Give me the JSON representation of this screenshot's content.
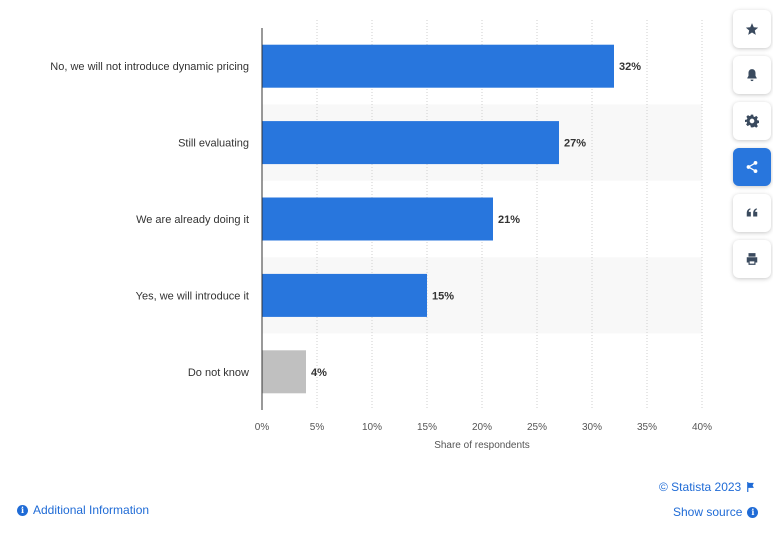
{
  "chart_data": {
    "type": "bar",
    "orientation": "horizontal",
    "categories": [
      "No, we will not introduce dynamic pricing",
      "Still evaluating",
      "We are already doing it",
      "Yes, we will introduce it",
      "Do not know"
    ],
    "values": [
      32,
      27,
      21,
      15,
      4
    ],
    "value_labels": [
      "32%",
      "27%",
      "21%",
      "15%",
      "4%"
    ],
    "bar_colors": [
      "#2876dd",
      "#2876dd",
      "#2876dd",
      "#2876dd",
      "#c0c0c0"
    ],
    "xlabel": "Share of respondents",
    "xlim": [
      0,
      40
    ],
    "xticks": [
      0,
      5,
      10,
      15,
      20,
      25,
      30,
      35,
      40
    ],
    "xtick_labels": [
      "0%",
      "5%",
      "10%",
      "15%",
      "20%",
      "25%",
      "30%",
      "35%",
      "40%"
    ],
    "grid": "vertical dotted",
    "band_colors": [
      "#ffffff",
      "#f8f8f8"
    ]
  },
  "toolbar": {
    "buttons": [
      {
        "name": "favorite-button",
        "icon": "star-icon",
        "active": false
      },
      {
        "name": "notification-button",
        "icon": "bell-icon",
        "active": false
      },
      {
        "name": "settings-button",
        "icon": "gear-icon",
        "active": false
      },
      {
        "name": "share-button",
        "icon": "share-icon",
        "active": true
      },
      {
        "name": "cite-button",
        "icon": "quote-icon",
        "active": false
      },
      {
        "name": "print-button",
        "icon": "printer-icon",
        "active": false
      }
    ]
  },
  "footer": {
    "copyright": "© Statista 2023",
    "additional_info": "Additional Information",
    "show_source": "Show source"
  },
  "colors": {
    "accent": "#2876dd",
    "link": "#1f6bd6"
  }
}
